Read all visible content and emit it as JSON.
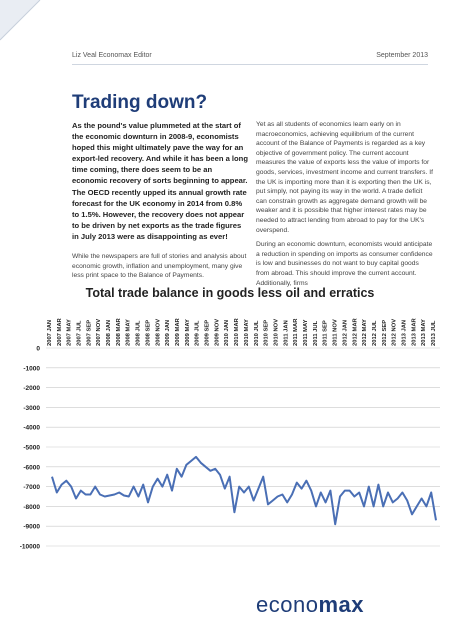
{
  "header": {
    "left": "Liz Veal Economax Editor",
    "right": "September 2013"
  },
  "title": "Trading down?",
  "lead": "As the pound's value plummeted at the start of the economic downturn in 2008-9, economists hoped this might ultimately pave the way for an export-led recovery. And while it has been a long time coming, there does seem to be an economic recovery of sorts beginning to appear. The OECD recently upped its annual growth rate forecast for the UK economy in 2014 from 0.8% to 1.5%. However, the recovery does not appear to be driven by net exports as the trade figures in July 2013 were as disappointing as ever!",
  "left_para": "While the newspapers are full of stories and analysis about economic growth, inflation and unemployment, many give less print space to the Balance of Payments.",
  "right_paras": [
    "Yet as all students of economics learn early on in macroeconomics, achieving equilibrium of the current account of the Balance of Payments is regarded as a key objective of government policy. The current account measures the value of exports less the value of imports for goods, services, investment income and current transfers. If the UK is importing more than it is exporting then the UK is, put simply, not paying its way in the world. A trade deficit can constrain growth as aggregate demand growth will be weaker and it is possible that higher interest rates may be needed to attract lending from abroad to pay for the UK's overspend.",
    "During an economic downturn, economists would anticipate a reduction in spending on imports as consumer confidence is low and businesses do not want to buy capital goods from abroad. This should improve the current account. Additionally, firms"
  ],
  "logo": {
    "part1": "econo",
    "part2": "max"
  },
  "colors": {
    "title": "#1f3d78",
    "line": "#4a6fb5",
    "grid": "#c9c9c9"
  },
  "chart_data": {
    "type": "line",
    "title": "Total trade balance in goods less oil and erratics",
    "ylim": [
      -10000,
      0
    ],
    "yticks": [
      0,
      -1000,
      -2000,
      -3000,
      -4000,
      -5000,
      -6000,
      -7000,
      -8000,
      -9000,
      -10000
    ],
    "grid": true,
    "xtick_labels": [
      "2007 JAN",
      "2007 MAR",
      "2007 MAY",
      "2007 JUL",
      "2007 SEP",
      "2007 NOV",
      "2008 JAN",
      "2008 MAR",
      "2008 MAY",
      "2008 JUL",
      "2008 SEP",
      "2008 NOV",
      "2009 JAN",
      "2009 MAR",
      "2009 MAY",
      "2009 JUL",
      "2009 SEP",
      "2009 NOV",
      "2010 JAN",
      "2010 MAR",
      "2010 MAY",
      "2010 JUL",
      "2010 SEP",
      "2010 NOV",
      "2011 JAN",
      "2011 MAR",
      "2011 MAY",
      "2011 JUL",
      "2011 SEP",
      "2011 NOV",
      "2012 JAN",
      "2012 MAR",
      "2012 MAY",
      "2012 JUL",
      "2012 SEP",
      "2012 NOV",
      "2013 JAN",
      "2013 MAR",
      "2013 MAY",
      "2013 JUL"
    ],
    "series": [
      {
        "values": [
          -6500,
          -7300,
          -6900,
          -6700,
          -7000,
          -7600,
          -7200,
          -7400,
          -7400,
          -7000,
          -7400,
          -7500,
          -7450,
          -7400,
          -7300,
          -7450,
          -7500,
          -7000,
          -7500,
          -6900,
          -7800,
          -7000,
          -6600,
          -7000,
          -6400,
          -7200,
          -6100,
          -6500,
          -5900,
          -5700,
          -5500,
          -5800,
          -6000,
          -6200,
          -6100,
          -6400,
          -7100,
          -6500,
          -8300,
          -7000,
          -7300,
          -7000,
          -7700,
          -7100,
          -6500,
          -7900,
          -7700,
          -7500,
          -7400,
          -7800,
          -7400,
          -6800,
          -7100,
          -6700,
          -7200,
          -8000,
          -7300,
          -7800,
          -7200,
          -8900,
          -7500,
          -7200,
          -7200,
          -7500,
          -7300,
          -8000,
          -7000,
          -8000,
          -6900,
          -8000,
          -7300,
          -7800,
          -7600,
          -7300,
          -7700,
          -8400,
          -8000,
          -7600,
          -8000,
          -7300,
          -8700
        ]
      }
    ]
  }
}
